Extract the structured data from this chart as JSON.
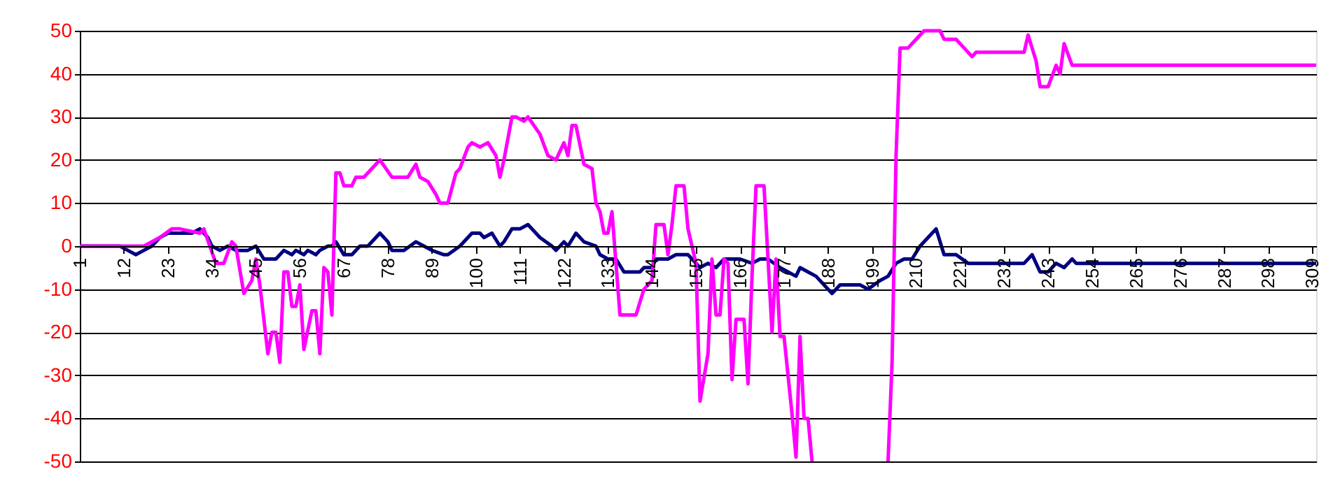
{
  "chart_data": {
    "type": "line",
    "xlim": [
      1,
      310
    ],
    "xticks": [
      1,
      12,
      23,
      34,
      45,
      56,
      67,
      78,
      89,
      100,
      111,
      122,
      133,
      144,
      155,
      166,
      177,
      188,
      199,
      210,
      221,
      232,
      243,
      254,
      265,
      276,
      287,
      298,
      309
    ],
    "ylim": [
      -50,
      50
    ],
    "yticks": [
      -50,
      -40,
      -30,
      -20,
      -10,
      0,
      10,
      20,
      30,
      40,
      50
    ],
    "grid": "y",
    "marker": "none",
    "line_style": "solid",
    "series": [
      {
        "color": "#000080",
        "x": [
          1,
          11,
          13,
          15,
          17,
          19,
          21,
          23,
          25,
          29,
          31,
          33,
          34,
          36,
          38,
          40,
          43,
          45,
          47,
          48,
          50,
          52,
          54,
          55,
          57,
          58,
          60,
          61,
          63,
          64,
          65,
          67,
          69,
          71,
          73,
          76,
          78,
          79,
          82,
          85,
          87,
          89,
          92,
          93,
          96,
          99,
          101,
          102,
          104,
          106,
          107,
          109,
          111,
          113,
          116,
          119,
          120,
          122,
          123,
          125,
          127,
          130,
          131,
          133,
          135,
          137,
          141,
          142,
          144,
          145,
          148,
          150,
          153,
          155,
          156,
          158,
          160,
          162,
          166,
          169,
          171,
          173,
          176,
          178,
          180,
          181,
          183,
          185,
          187,
          189,
          191,
          194,
          196,
          198,
          201,
          203,
          205,
          207,
          209,
          211,
          213,
          215,
          217,
          220,
          223,
          237,
          239,
          241,
          243,
          245,
          247,
          249,
          250,
          310
        ],
        "values": [
          0,
          0,
          -1,
          -2,
          -1,
          0,
          2,
          3,
          3,
          3,
          4,
          2,
          0,
          -1,
          0,
          -1,
          -1,
          0,
          -3,
          -3,
          -3,
          -1,
          -2,
          -1,
          -2,
          -1,
          -2,
          -1,
          0,
          0,
          1,
          -2,
          -2,
          0,
          0,
          3,
          1,
          -1,
          -1,
          1,
          0,
          -1,
          -2,
          -2,
          0,
          3,
          3,
          2,
          3,
          0,
          1,
          4,
          4,
          5,
          2,
          0,
          -1,
          1,
          0,
          3,
          1,
          0,
          -2,
          -3,
          -3,
          -6,
          -6,
          -5,
          -5,
          -3,
          -3,
          -2,
          -2,
          -4,
          -5,
          -4,
          -5,
          -3,
          -3,
          -4,
          -3,
          -3,
          -5,
          -6,
          -7,
          -5,
          -6,
          -7,
          -9,
          -11,
          -9,
          -9,
          -9,
          -10,
          -8,
          -7,
          -4,
          -3,
          -3,
          0,
          2,
          4,
          -2,
          -2,
          -4,
          -4,
          -2,
          -6,
          -6,
          -4,
          -5,
          -3,
          -4,
          -4
        ]
      },
      {
        "color": "#ff00ff",
        "x": [
          1,
          17,
          21,
          24,
          26,
          31,
          32,
          35,
          37,
          39,
          40,
          42,
          44,
          45,
          46,
          47,
          48,
          49,
          50,
          51,
          52,
          53,
          54,
          55,
          56,
          57,
          59,
          60,
          61,
          62,
          63,
          64,
          65,
          66,
          67,
          69,
          70,
          72,
          76,
          79,
          83,
          85,
          86,
          88,
          90,
          91,
          93,
          95,
          96,
          98,
          99,
          101,
          103,
          105,
          106,
          107,
          109,
          110,
          112,
          113,
          116,
          118,
          120,
          122,
          123,
          124,
          125,
          127,
          129,
          130,
          131,
          132,
          133,
          134,
          136,
          140,
          142,
          144,
          145,
          147,
          148,
          149,
          150,
          152,
          153,
          155,
          156,
          158,
          159,
          160,
          161,
          162,
          163,
          164,
          165,
          167,
          168,
          169,
          170,
          172,
          173,
          174,
          175,
          176,
          177,
          179,
          180,
          181,
          182,
          183,
          184,
          185,
          202,
          203,
          204,
          205,
          206,
          208,
          210,
          212,
          216,
          217,
          220,
          222,
          224,
          225,
          237,
          238,
          240,
          241,
          243,
          245,
          246,
          247,
          249,
          310
        ],
        "values": [
          0,
          0,
          2,
          4,
          4,
          3,
          4,
          -4,
          -4,
          1,
          0,
          -11,
          -8,
          -3,
          -9,
          -17,
          -25,
          -20,
          -20,
          -27,
          -6,
          -6,
          -14,
          -14,
          -9,
          -24,
          -15,
          -15,
          -25,
          -5,
          -6,
          -16,
          17,
          17,
          14,
          14,
          16,
          16,
          20,
          16,
          16,
          19,
          16,
          15,
          12,
          10,
          10,
          17,
          18,
          23,
          24,
          23,
          24,
          21,
          16,
          20,
          30,
          30,
          29,
          30,
          26,
          21,
          20,
          24,
          21,
          28,
          28,
          19,
          18,
          10,
          8,
          3,
          3,
          8,
          -16,
          -16,
          -10,
          -8,
          5,
          5,
          -2,
          5,
          14,
          14,
          4,
          -4,
          -36,
          -25,
          -3,
          -16,
          -16,
          -3,
          -4,
          -31,
          -17,
          -17,
          -32,
          -7,
          14,
          14,
          -3,
          -20,
          -3,
          -21,
          -21,
          -39,
          -49,
          -21,
          -40,
          -40,
          -50,
          null,
          null,
          -50,
          -27,
          21,
          46,
          46,
          48,
          50,
          50,
          48,
          48,
          46,
          44,
          45,
          45,
          49,
          43,
          37,
          37,
          42,
          40,
          47,
          42,
          42
        ]
      }
    ]
  }
}
